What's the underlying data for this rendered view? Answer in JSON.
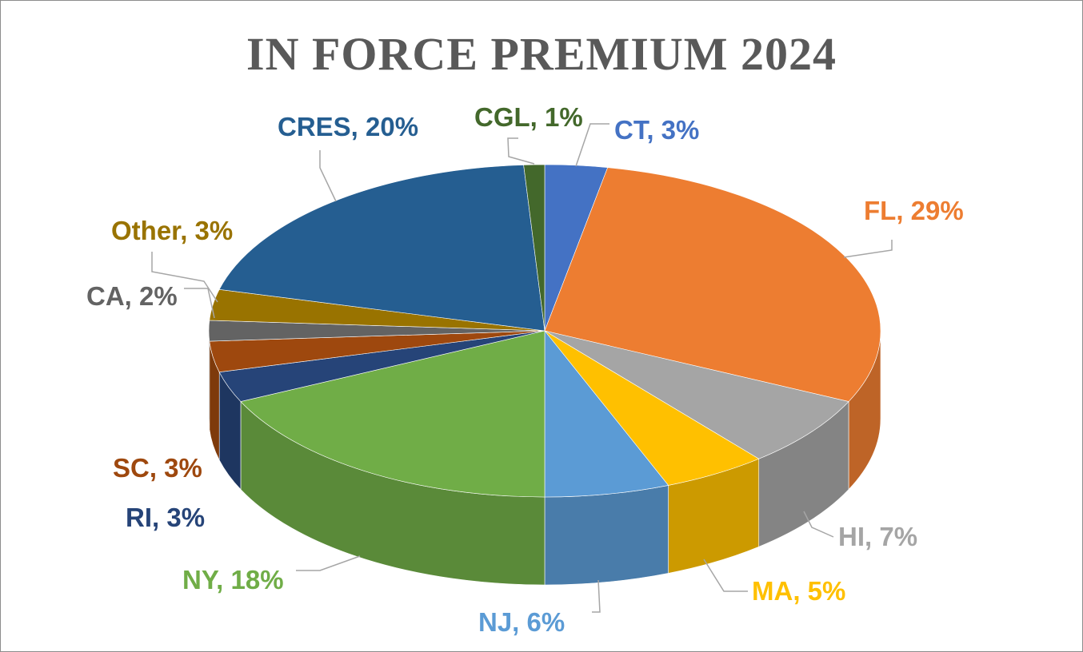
{
  "chart_data": {
    "type": "pie",
    "title": "IN FORCE PREMIUM 2024",
    "slices": [
      {
        "label": "CT, 3%",
        "category": "CT",
        "value": 3,
        "color": "#4472C4"
      },
      {
        "label": "FL, 29%",
        "category": "FL",
        "value": 29,
        "color": "#ED7D31"
      },
      {
        "label": "HI, 7%",
        "category": "HI",
        "value": 7,
        "color": "#A5A5A5"
      },
      {
        "label": "MA, 5%",
        "category": "MA",
        "value": 5,
        "color": "#FFC000"
      },
      {
        "label": "NJ, 6%",
        "category": "NJ",
        "value": 6,
        "color": "#5B9BD5"
      },
      {
        "label": "NY, 18%",
        "category": "NY",
        "value": 18,
        "color": "#70AD47"
      },
      {
        "label": "RI, 3%",
        "category": "RI",
        "value": 3,
        "color": "#264478"
      },
      {
        "label": "SC, 3%",
        "category": "SC",
        "value": 3,
        "color": "#9E480E"
      },
      {
        "label": "CA, 2%",
        "category": "CA",
        "value": 2,
        "color": "#636363"
      },
      {
        "label": "Other, 3%",
        "category": "Other",
        "value": 3,
        "color": "#997300"
      },
      {
        "label": "CRES, 20%",
        "category": "CRES",
        "value": 20,
        "color": "#255E91"
      },
      {
        "label": "CGL, 1%",
        "category": "CGL",
        "value": 1,
        "color": "#43682B"
      }
    ],
    "label_colors": {
      "CT": "#4472C4",
      "FL": "#ED7D31",
      "HI": "#A5A5A5",
      "MA": "#FFC000",
      "NJ": "#5B9BD5",
      "NY": "#70AD47",
      "RI": "#264478",
      "SC": "#9E480E",
      "CA": "#636363",
      "Other": "#997300",
      "CRES": "#255E91",
      "CGL": "#43682B"
    }
  }
}
